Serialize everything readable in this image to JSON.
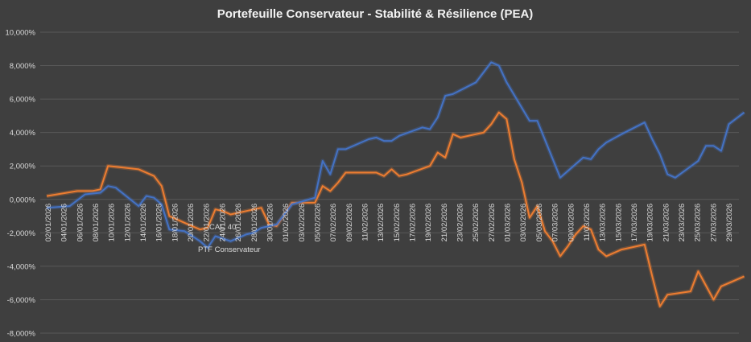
{
  "chart_data": {
    "type": "line",
    "title": "Portefeuille Conservateur - Stabilité & Résilience (PEA)",
    "xlabel": "",
    "ylabel": "",
    "ylim": [
      -0.08,
      0.1
    ],
    "yticks": [
      -0.08,
      -0.06,
      -0.04,
      -0.02,
      0.0,
      0.02,
      0.04,
      0.06,
      0.08,
      0.1
    ],
    "ytick_labels": [
      "-8,000%",
      "-6,000%",
      "-4,000%",
      "-2,000%",
      "0,000%",
      "2,000%",
      "4,000%",
      "6,000%",
      "8,000%",
      "10,000%"
    ],
    "grid": true,
    "legend": [
      "CAC 40",
      "PTF Conservateur"
    ],
    "xtick_labels": [
      "02/01/2026",
      "04/01/2026",
      "06/01/2026",
      "08/01/2026",
      "10/01/2026",
      "12/01/2026",
      "14/01/2026",
      "16/01/2026",
      "18/01/2026",
      "20/01/2026",
      "22/01/2026",
      "24/01/2026",
      "26/01/2026",
      "28/01/2026",
      "30/01/2026",
      "01/02/2026",
      "03/02/2026",
      "05/02/2026",
      "07/02/2026",
      "09/02/2026",
      "11/02/2026",
      "13/02/2026",
      "15/02/2026",
      "17/02/2026",
      "19/02/2026",
      "21/02/2026",
      "23/02/2026",
      "25/02/2026",
      "27/02/2026",
      "01/03/2026",
      "03/03/2026",
      "05/03/2026",
      "07/03/2026",
      "09/03/2026",
      "11/03/2026",
      "13/03/2026",
      "15/03/2026",
      "17/03/2026",
      "19/03/2026",
      "21/03/2026",
      "23/03/2026",
      "25/03/2026",
      "27/03/2026",
      "29/03/2026"
    ],
    "x_domain": [
      0,
      88
    ],
    "series": [
      {
        "name": "CAC 40",
        "color": "#ed7d31",
        "points": [
          [
            0,
            0.2
          ],
          [
            4,
            0.5
          ],
          [
            6,
            0.5
          ],
          [
            7,
            0.6
          ],
          [
            8,
            2.0
          ],
          [
            10,
            1.9
          ],
          [
            12,
            1.8
          ],
          [
            14,
            1.4
          ],
          [
            15,
            0.8
          ],
          [
            16,
            -1.0
          ],
          [
            18,
            -1.4
          ],
          [
            20,
            -1.8
          ],
          [
            21,
            -1.7
          ],
          [
            22,
            -0.6
          ],
          [
            23,
            -0.7
          ],
          [
            24,
            -0.9
          ],
          [
            26,
            -0.7
          ],
          [
            28,
            -0.5
          ],
          [
            29,
            -1.5
          ],
          [
            30,
            -1.6
          ],
          [
            32,
            -0.2
          ],
          [
            34,
            -0.2
          ],
          [
            35,
            -0.2
          ],
          [
            36,
            0.8
          ],
          [
            37,
            0.5
          ],
          [
            38,
            1.0
          ],
          [
            39,
            1.6
          ],
          [
            43,
            1.6
          ],
          [
            44,
            1.4
          ],
          [
            45,
            1.8
          ],
          [
            46,
            1.4
          ],
          [
            47,
            1.5
          ],
          [
            50,
            2.0
          ],
          [
            51,
            2.8
          ],
          [
            52,
            2.5
          ],
          [
            53,
            3.9
          ],
          [
            54,
            3.7
          ],
          [
            57,
            4.0
          ],
          [
            58,
            4.5
          ],
          [
            59,
            5.2
          ],
          [
            60,
            4.8
          ],
          [
            61,
            2.4
          ],
          [
            62,
            1.0
          ],
          [
            63,
            -1.1
          ],
          [
            64,
            -0.4
          ],
          [
            65,
            -1.9
          ],
          [
            66,
            -2.5
          ],
          [
            67,
            -3.4
          ],
          [
            68,
            -2.8
          ],
          [
            69,
            -2.1
          ],
          [
            70,
            -1.6
          ],
          [
            71,
            -1.8
          ],
          [
            72,
            -3.0
          ],
          [
            73,
            -3.4
          ],
          [
            75,
            -3.0
          ],
          [
            77,
            -2.8
          ],
          [
            78,
            -2.7
          ],
          [
            79,
            -4.6
          ],
          [
            80,
            -6.4
          ],
          [
            81,
            -5.7
          ],
          [
            84,
            -5.5
          ],
          [
            85,
            -4.3
          ],
          [
            87,
            -6.0
          ],
          [
            88,
            -5.2
          ],
          [
            91,
            -4.6
          ]
        ]
      },
      {
        "name": "PTF Conservateur",
        "color": "#4472c4",
        "points": [
          [
            0,
            -0.5
          ],
          [
            3,
            -0.4
          ],
          [
            5,
            0.3
          ],
          [
            7,
            0.4
          ],
          [
            8,
            0.8
          ],
          [
            9,
            0.7
          ],
          [
            12,
            -0.4
          ],
          [
            13,
            0.2
          ],
          [
            14,
            0.1
          ],
          [
            15,
            -0.3
          ],
          [
            16,
            -1.8
          ],
          [
            18,
            -1.9
          ],
          [
            20,
            -2.5
          ],
          [
            21,
            -2.9
          ],
          [
            22,
            -2.2
          ],
          [
            24,
            -2.5
          ],
          [
            25,
            -2.3
          ],
          [
            26,
            -2.1
          ],
          [
            27,
            -2.0
          ],
          [
            28,
            -1.7
          ],
          [
            29,
            -1.6
          ],
          [
            30,
            -1.5
          ],
          [
            32,
            -0.3
          ],
          [
            35,
            0.1
          ],
          [
            36,
            2.3
          ],
          [
            37,
            1.5
          ],
          [
            38,
            3.0
          ],
          [
            39,
            3.0
          ],
          [
            42,
            3.6
          ],
          [
            43,
            3.7
          ],
          [
            44,
            3.5
          ],
          [
            45,
            3.5
          ],
          [
            46,
            3.8
          ],
          [
            49,
            4.3
          ],
          [
            50,
            4.2
          ],
          [
            51,
            4.9
          ],
          [
            52,
            6.2
          ],
          [
            53,
            6.3
          ],
          [
            56,
            7.0
          ],
          [
            57,
            7.6
          ],
          [
            58,
            8.2
          ],
          [
            59,
            8.0
          ],
          [
            60,
            7.0
          ],
          [
            63,
            4.7
          ],
          [
            64,
            4.7
          ],
          [
            67,
            1.3
          ],
          [
            70,
            2.5
          ],
          [
            71,
            2.4
          ],
          [
            72,
            3.0
          ],
          [
            73,
            3.4
          ],
          [
            75,
            3.9
          ],
          [
            78,
            4.6
          ],
          [
            79,
            3.6
          ],
          [
            80,
            2.7
          ],
          [
            81,
            1.5
          ],
          [
            82,
            1.3
          ],
          [
            85,
            2.3
          ],
          [
            86,
            3.2
          ],
          [
            87,
            3.2
          ],
          [
            88,
            2.9
          ],
          [
            89,
            4.5
          ],
          [
            91,
            5.2
          ]
        ]
      }
    ]
  }
}
